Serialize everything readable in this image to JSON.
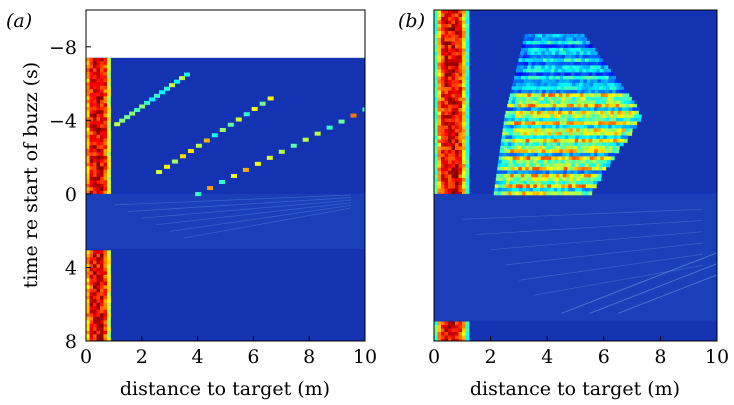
{
  "chart_data": [
    {
      "type": "heatmap",
      "panel_label": "(a)",
      "panel_letter": "a",
      "xlabel": "distance to target (m)",
      "ylabel": "time re start of buzz (s)",
      "xlim": [
        0,
        10
      ],
      "ylim": [
        -10,
        8
      ],
      "y_inverted": true,
      "x_ticks": [
        0,
        2,
        4,
        6,
        8,
        10
      ],
      "x_tick_labels": [
        "0",
        "2",
        "4",
        "6",
        "8",
        "10"
      ],
      "y_ticks": [
        -8,
        -4,
        0,
        4,
        8
      ],
      "y_tick_labels": [
        "−8",
        "−4",
        "0",
        "4",
        "8"
      ],
      "data_start_time": -7.4,
      "buzz_band": [
        0,
        3
      ],
      "colormap": [
        "#00007f",
        "#0000ff",
        "#007fff",
        "#00ffff",
        "#7fff7f",
        "#ffff00",
        "#ff7f00",
        "#ff0000",
        "#7f0000"
      ],
      "surface_band": {
        "x_peak": 0.35,
        "x_width": 0.5,
        "intensity": 0.95
      },
      "echo_tracks": [
        {
          "x_start": 3.6,
          "t_start": -6.5,
          "x_end": 1.1,
          "t_end": -3.8,
          "intensity": 0.45
        },
        {
          "x_start": 6.6,
          "t_start": -5.2,
          "x_end": 2.6,
          "t_end": -1.2,
          "intensity": 0.55
        },
        {
          "x_start": 10.0,
          "t_start": -4.6,
          "x_end": 4.0,
          "t_end": 0.0,
          "intensity": 0.6
        }
      ]
    },
    {
      "type": "heatmap",
      "panel_label": "(b)",
      "panel_letter": "b",
      "xlabel": "distance to target (m)",
      "ylabel": "",
      "xlim": [
        0,
        10
      ],
      "ylim": [
        -10,
        8
      ],
      "y_inverted": true,
      "x_ticks": [
        0,
        2,
        4,
        6,
        8,
        10
      ],
      "x_tick_labels": [
        "0",
        "2",
        "4",
        "6",
        "8",
        "10"
      ],
      "data_start_time": -10,
      "buzz_band": [
        0,
        6.9
      ],
      "colormap": [
        "#00007f",
        "#0000ff",
        "#007fff",
        "#00ffff",
        "#7fff7f",
        "#ffff00",
        "#ff7f00",
        "#ff0000",
        "#7f0000"
      ],
      "surface_band": {
        "x_peak": 0.55,
        "x_width": 0.6,
        "intensity": 0.95
      },
      "target_region": {
        "top_time": -8.7,
        "bottom_time": 0,
        "left_x_at_top": 3.2,
        "left_x_at_mid": 2.5,
        "left_x_at_bottom": 2.1,
        "right_x_at_top": 5.3,
        "right_x_at_mid": 7.3,
        "right_x_at_bottom": 5.4,
        "intensity": 0.75
      }
    }
  ]
}
